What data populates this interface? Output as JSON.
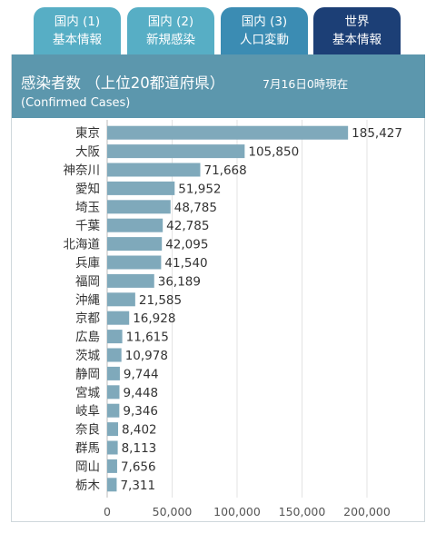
{
  "tabs": [
    {
      "line1": "国内 (1)",
      "line2": "基本情報",
      "color": "#57aec5"
    },
    {
      "line1": "国内 (2)",
      "line2": "新規感染",
      "color": "#57aec5"
    },
    {
      "line1": "国内 (3)",
      "line2": "人口変動",
      "color": "#3b8cb3"
    },
    {
      "line1": "世界",
      "line2": "基本情報",
      "color": "#1c3f76"
    }
  ],
  "header": {
    "title": "感染者数 （上位20都道府県）",
    "date": "7月16日0時現在",
    "subtitle": "(Confirmed Cases)",
    "color": "#5c97ad"
  },
  "chart_data": {
    "type": "bar",
    "orientation": "horizontal",
    "categories": [
      "東京",
      "大阪",
      "神奈川",
      "愛知",
      "埼玉",
      "千葉",
      "北海道",
      "兵庫",
      "福岡",
      "沖縄",
      "京都",
      "広島",
      "茨城",
      "静岡",
      "宮城",
      "岐阜",
      "奈良",
      "群馬",
      "岡山",
      "栃木"
    ],
    "values": [
      185427,
      105850,
      71668,
      51952,
      48785,
      42785,
      42095,
      41540,
      36189,
      21585,
      16928,
      11615,
      10978,
      9744,
      9448,
      9346,
      8402,
      8113,
      7656,
      7311
    ],
    "value_labels": [
      "185,427",
      "105,850",
      "71,668",
      "51,952",
      "48,785",
      "42,785",
      "42,095",
      "41,540",
      "36,189",
      "21,585",
      "16,928",
      "11,615",
      "10,978",
      "9,744",
      "9,448",
      "9,346",
      "8,402",
      "8,113",
      "7,656",
      "7,311"
    ],
    "xlim": [
      0,
      200000
    ],
    "xticks": [
      0,
      50000,
      100000,
      150000,
      200000
    ],
    "xtick_labels": [
      "0",
      "50,000",
      "100,000",
      "150,000",
      "200,000"
    ],
    "grid": true,
    "bar_color": "#7fa9bb"
  }
}
